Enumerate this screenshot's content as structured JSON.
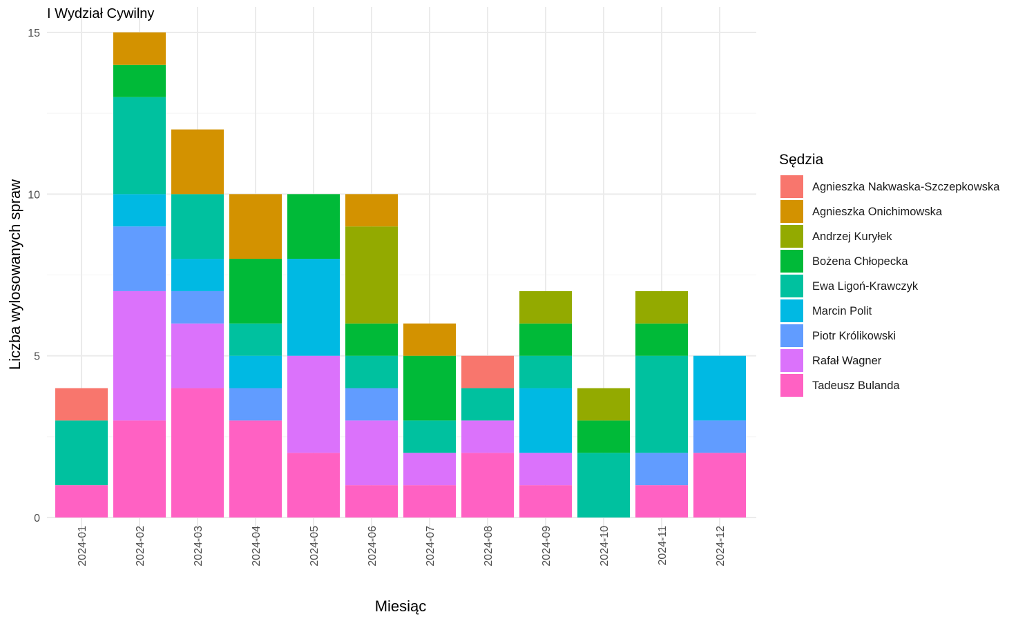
{
  "chart_data": {
    "type": "bar",
    "stacked": true,
    "title": "I Wydział Cywilny",
    "xlabel": "Miesiąc",
    "ylabel": "Liczba wylosowanych spraw",
    "ylim": [
      0,
      15
    ],
    "yticks": [
      0,
      5,
      10,
      15
    ],
    "grid": true,
    "legend_title": "Sędzia",
    "legend_position": "right",
    "categories": [
      "2024-01",
      "2024-02",
      "2024-03",
      "2024-04",
      "2024-05",
      "2024-06",
      "2024-07",
      "2024-08",
      "2024-09",
      "2024-10",
      "2024-11",
      "2024-12"
    ],
    "series": [
      {
        "name": "Agnieszka Nakwaska-Szczepkowska",
        "color": "#F8766D",
        "values": [
          1,
          0,
          0,
          0,
          0,
          0,
          0,
          1,
          0,
          0,
          0,
          0
        ]
      },
      {
        "name": "Agnieszka Onichimowska",
        "color": "#D39200",
        "values": [
          0,
          1,
          2,
          2,
          0,
          1,
          1,
          0,
          0,
          0,
          0,
          0
        ]
      },
      {
        "name": "Andrzej Kuryłek",
        "color": "#93AA00",
        "values": [
          0,
          0,
          0,
          0,
          0,
          3,
          0,
          0,
          1,
          1,
          1,
          0
        ]
      },
      {
        "name": "Bożena Chłopecka",
        "color": "#00BA38",
        "values": [
          0,
          1,
          0,
          2,
          2,
          1,
          2,
          0,
          1,
          1,
          1,
          0
        ]
      },
      {
        "name": "Ewa Ligoń-Krawczyk",
        "color": "#00C19F",
        "values": [
          2,
          3,
          2,
          1,
          0,
          1,
          1,
          1,
          1,
          2,
          3,
          0
        ]
      },
      {
        "name": "Marcin Polit",
        "color": "#00B9E3",
        "values": [
          0,
          1,
          1,
          1,
          3,
          0,
          0,
          0,
          2,
          0,
          0,
          2
        ]
      },
      {
        "name": "Piotr Królikowski",
        "color": "#619CFF",
        "values": [
          0,
          2,
          1,
          1,
          0,
          1,
          0,
          0,
          0,
          0,
          1,
          1
        ]
      },
      {
        "name": "Rafał Wagner",
        "color": "#DB72FB",
        "values": [
          0,
          4,
          2,
          0,
          3,
          2,
          1,
          1,
          1,
          0,
          0,
          0
        ]
      },
      {
        "name": "Tadeusz Bulanda",
        "color": "#FF61C3",
        "values": [
          1,
          3,
          4,
          3,
          2,
          1,
          1,
          2,
          1,
          0,
          1,
          2
        ]
      }
    ]
  }
}
